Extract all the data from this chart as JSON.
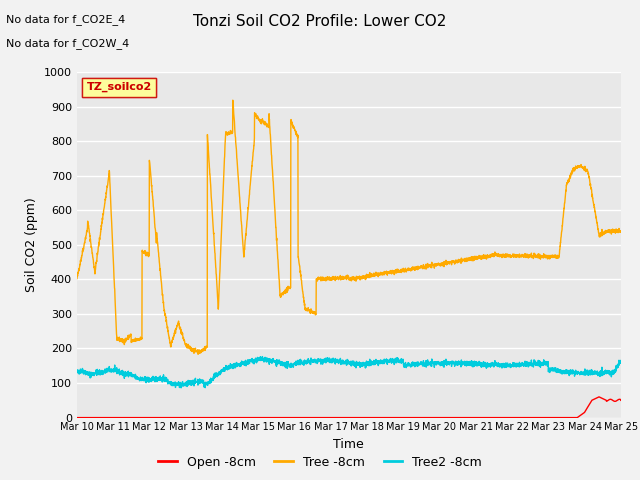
{
  "title": "Tonzi Soil CO2 Profile: Lower CO2",
  "xlabel": "Time",
  "ylabel": "Soil CO2 (ppm)",
  "ylim": [
    0,
    1000
  ],
  "yticks": [
    0,
    100,
    200,
    300,
    400,
    500,
    600,
    700,
    800,
    900,
    1000
  ],
  "annotation_lines": [
    "No data for f_CO2E_4",
    "No data for f_CO2W_4"
  ],
  "legend_box_label": "TZ_soilco2",
  "legend_entries": [
    "Open -8cm",
    "Tree -8cm",
    "Tree2 -8cm"
  ],
  "legend_colors": [
    "#ff0000",
    "#ffaa00",
    "#00ccdd"
  ],
  "line_colors": {
    "orange": "#ffaa00",
    "cyan": "#00ccdd",
    "red": "#ff0000"
  },
  "bg_color": "#e8e8e8",
  "fig_bg_color": "#f2f2f2",
  "grid_color": "#ffffff"
}
